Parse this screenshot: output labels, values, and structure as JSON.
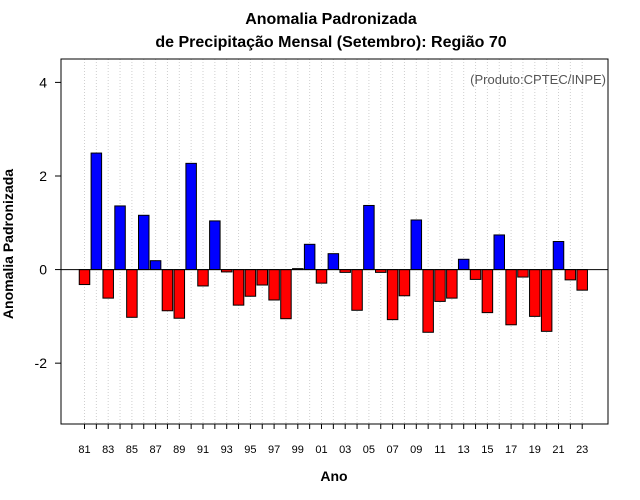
{
  "chart_data": {
    "type": "bar",
    "title_line1": "Anomalia Padronizada",
    "title_line2": "de Precipitação Mensal (Setembro): Região 70",
    "xlabel": "Ano",
    "ylabel": "Anomalia Padronizada",
    "annotation": "(Produto:CPTEC/INPE)",
    "ylim": [
      -3.3,
      4.5
    ],
    "yticks": [
      -2,
      0,
      2,
      4
    ],
    "ytick_labels": [
      "-2",
      "0",
      "2",
      "4"
    ],
    "grid": true,
    "positive_color": "#0000ff",
    "negative_color": "#ff0000",
    "categories": [
      "81",
      "82",
      "83",
      "84",
      "85",
      "86",
      "87",
      "88",
      "89",
      "90",
      "91",
      "92",
      "93",
      "94",
      "95",
      "96",
      "97",
      "98",
      "99",
      "00",
      "01",
      "02",
      "03",
      "04",
      "05",
      "06",
      "07",
      "08",
      "09",
      "10",
      "11",
      "12",
      "13",
      "14",
      "15",
      "16",
      "17",
      "18",
      "19",
      "20",
      "21",
      "22",
      "23"
    ],
    "x_tick_labels": [
      "81",
      "83",
      "85",
      "87",
      "89",
      "91",
      "93",
      "95",
      "97",
      "99",
      "01",
      "03",
      "05",
      "07",
      "09",
      "11",
      "13",
      "15",
      "17",
      "19",
      "21",
      "23"
    ],
    "values": [
      -0.32,
      2.49,
      -0.61,
      1.36,
      -1.02,
      1.16,
      0.19,
      -0.88,
      -1.04,
      2.27,
      -0.35,
      1.04,
      -0.05,
      -0.76,
      -0.57,
      -0.33,
      -0.65,
      -1.05,
      0.02,
      0.54,
      -0.29,
      0.34,
      -0.06,
      -0.87,
      1.37,
      -0.06,
      -1.07,
      -0.56,
      1.06,
      -1.34,
      -0.68,
      -0.61,
      0.22,
      -0.21,
      -0.92,
      0.74,
      -1.18,
      -0.16,
      -1.0,
      -1.32,
      0.6,
      -0.22,
      -0.44
    ]
  }
}
